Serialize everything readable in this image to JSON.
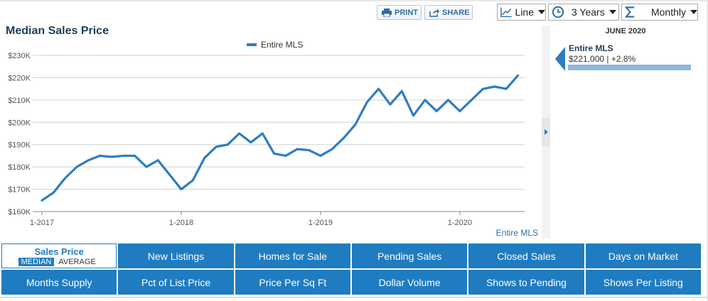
{
  "toolbar": {
    "print_label": "PRINT",
    "share_label": "SHARE",
    "chart_type": "Line",
    "period": "3 Years",
    "interval": "Monthly"
  },
  "icons": {
    "print": "printer-icon",
    "share": "share-icon",
    "chart_type": "line-chart-icon",
    "period": "clock-icon",
    "interval": "sigma-icon"
  },
  "colors": {
    "accent": "#1f7cc0",
    "line": "#2e7dc0",
    "title": "#1f3d5c"
  },
  "panel": {
    "date": "JUNE 2020",
    "series_name": "Entire MLS",
    "value_text": "$221,000 | +2.8%",
    "bar_fraction": 1.0
  },
  "chart_data": {
    "type": "line",
    "title": "Median Sales Price",
    "legend": [
      "Entire MLS"
    ],
    "legend_position": "top-center",
    "source_label": "Entire MLS",
    "grid": true,
    "ylim": [
      160000,
      230000
    ],
    "y_ticks": [
      160000,
      170000,
      180000,
      190000,
      200000,
      210000,
      220000,
      230000
    ],
    "y_tick_labels": [
      "$160K",
      "$170K",
      "$180K",
      "$190K",
      "$200K",
      "$210K",
      "$220K",
      "$230K"
    ],
    "x_tick_labels": [
      "1-2017",
      "1-2018",
      "1-2019",
      "1-2020"
    ],
    "x_tick_index": [
      0,
      12,
      24,
      36
    ],
    "series": [
      {
        "name": "Entire MLS",
        "values": [
          165000,
          168500,
          175000,
          180000,
          183000,
          185000,
          184500,
          185000,
          185000,
          180000,
          183000,
          176500,
          170000,
          174000,
          184000,
          189000,
          190000,
          195000,
          191000,
          195000,
          186000,
          185000,
          188000,
          187500,
          185000,
          188000,
          193000,
          199000,
          209000,
          215000,
          208000,
          214000,
          203000,
          210000,
          205000,
          210000,
          205000,
          210000,
          215000,
          216000,
          215000,
          221000
        ]
      }
    ]
  },
  "tabs": [
    {
      "label": "Sales Price",
      "sub": [
        "MEDIAN",
        "AVERAGE"
      ],
      "active": true
    },
    {
      "label": "New Listings"
    },
    {
      "label": "Homes for Sale"
    },
    {
      "label": "Pending Sales"
    },
    {
      "label": "Closed Sales"
    },
    {
      "label": "Days on Market"
    },
    {
      "label": "Months Supply"
    },
    {
      "label": "Pct of List Price"
    },
    {
      "label": "Price Per Sq Ft"
    },
    {
      "label": "Dollar Volume"
    },
    {
      "label": "Shows to Pending"
    },
    {
      "label": "Shows Per Listing"
    }
  ]
}
